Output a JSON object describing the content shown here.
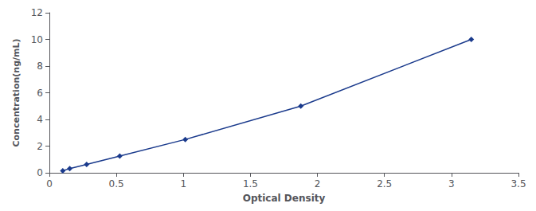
{
  "chart_data": {
    "type": "line",
    "x": [
      0.1,
      0.152,
      0.278,
      0.525,
      1.014,
      1.876,
      3.148
    ],
    "values": [
      0.156,
      0.312,
      0.625,
      1.25,
      2.5,
      5.0,
      10.0
    ],
    "color": "#1a3a8c",
    "marker": "diamond",
    "line_style": "solid",
    "xlabel": "Optical Density",
    "ylabel": "Concentration(ng/mL)",
    "xlim": [
      0,
      3.5
    ],
    "ylim": [
      0,
      12
    ],
    "xticks": [
      0,
      0.5,
      1,
      1.5,
      2,
      2.5,
      3,
      3.5
    ],
    "yticks": [
      0,
      2,
      4,
      6,
      8,
      10,
      12
    ],
    "grid": false
  }
}
